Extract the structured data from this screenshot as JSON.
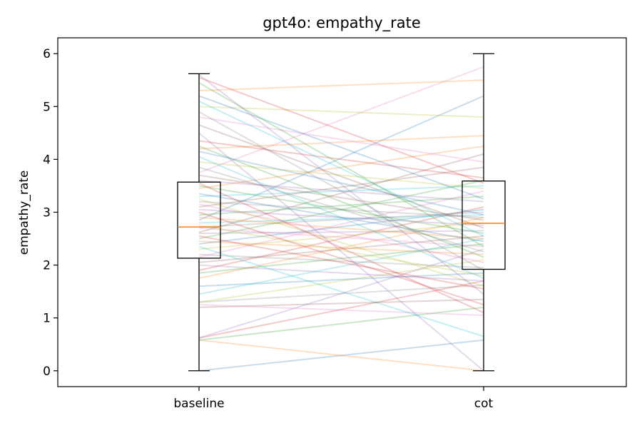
{
  "chart_data": {
    "type": "box",
    "title": "gpt4o: empathy_rate",
    "ylabel": "empathy_rate",
    "xlabel": "",
    "categories": [
      "baseline",
      "cot"
    ],
    "ylim": [
      -0.3,
      6.3
    ],
    "yticks": [
      0,
      1,
      2,
      3,
      4,
      5,
      6
    ],
    "grid": false,
    "boxes": [
      {
        "category": "baseline",
        "whisker_low": 0.0,
        "q1": 2.13,
        "median": 2.72,
        "q3": 3.57,
        "whisker_high": 5.62
      },
      {
        "category": "cot",
        "whisker_low": 0.0,
        "q1": 1.92,
        "median": 2.79,
        "q3": 3.59,
        "whisker_high": 6.0
      }
    ],
    "paired_lines": [
      [
        0.0,
        0.58
      ],
      [
        0.58,
        0.0
      ],
      [
        0.58,
        1.2
      ],
      [
        0.62,
        1.7
      ],
      [
        0.62,
        2.3
      ],
      [
        1.2,
        1.35
      ],
      [
        1.25,
        1.05
      ],
      [
        1.3,
        1.62
      ],
      [
        1.3,
        2.1
      ],
      [
        1.45,
        2.5
      ],
      [
        1.6,
        1.85
      ],
      [
        1.75,
        2.9
      ],
      [
        1.85,
        2.4
      ],
      [
        1.9,
        3.1
      ],
      [
        2.0,
        1.7
      ],
      [
        2.05,
        2.55
      ],
      [
        2.15,
        3.4
      ],
      [
        2.2,
        1.95
      ],
      [
        2.3,
        2.8
      ],
      [
        2.35,
        0.65
      ],
      [
        2.4,
        3.05
      ],
      [
        2.45,
        2.2
      ],
      [
        2.5,
        3.6
      ],
      [
        2.55,
        1.55
      ],
      [
        2.6,
        2.65
      ],
      [
        2.62,
        4.1
      ],
      [
        2.7,
        2.35
      ],
      [
        2.72,
        3.0
      ],
      [
        2.75,
        1.8
      ],
      [
        2.8,
        2.95
      ],
      [
        2.85,
        5.2
      ],
      [
        2.9,
        2.5
      ],
      [
        2.95,
        3.3
      ],
      [
        3.0,
        1.25
      ],
      [
        3.05,
        2.75
      ],
      [
        3.1,
        3.85
      ],
      [
        3.15,
        2.05
      ],
      [
        3.2,
        2.9
      ],
      [
        3.25,
        1.6
      ],
      [
        3.3,
        3.5
      ],
      [
        3.35,
        2.45
      ],
      [
        3.45,
        4.25
      ],
      [
        3.5,
        2.6
      ],
      [
        3.55,
        1.1
      ],
      [
        3.6,
        3.2
      ],
      [
        3.7,
        2.85
      ],
      [
        3.75,
        5.75
      ],
      [
        3.85,
        2.25
      ],
      [
        3.95,
        3.45
      ],
      [
        4.05,
        1.75
      ],
      [
        4.15,
        2.95
      ],
      [
        4.2,
        4.45
      ],
      [
        4.25,
        2.15
      ],
      [
        4.35,
        3.65
      ],
      [
        4.5,
        0.0
      ],
      [
        4.65,
        2.7
      ],
      [
        4.8,
        3.95
      ],
      [
        4.9,
        1.9
      ],
      [
        5.0,
        4.8
      ],
      [
        5.1,
        2.55
      ],
      [
        5.2,
        3.25
      ],
      [
        5.3,
        5.5
      ],
      [
        5.45,
        2.35
      ],
      [
        5.55,
        3.55
      ],
      [
        5.6,
        1.45
      ]
    ],
    "line_colors": [
      "#1f77b4",
      "#ff7f0e",
      "#2ca02c",
      "#d62728",
      "#9467bd",
      "#8c564b",
      "#e377c2",
      "#7f7f7f",
      "#bcbd22",
      "#17becf"
    ],
    "median_color": "#ff7f0e"
  }
}
